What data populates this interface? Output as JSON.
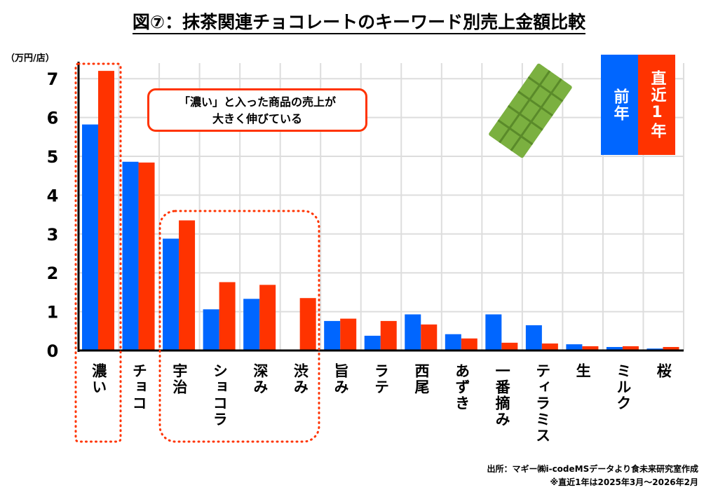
{
  "chart_data": {
    "type": "bar",
    "title": "図⑦：抹茶関連チョコレートのキーワード別売上金額比較",
    "ylabel": "（万円/店）",
    "ylim": [
      0,
      7
    ],
    "yticks": [
      "0",
      "1",
      "2",
      "3",
      "4",
      "5",
      "6",
      "7"
    ],
    "grid": true,
    "legend_position": "top-right",
    "categories": [
      "濃い",
      "チョコ",
      "宇治",
      "ショコラ",
      "深み",
      "渋み",
      "旨み",
      "ラテ",
      "西尾",
      "あずき",
      "一番摘み",
      "ティラミス",
      "生",
      "ミルク",
      "桜"
    ],
    "series": [
      {
        "name": "前年",
        "color": "#0066ff",
        "values": [
          5.82,
          4.86,
          2.88,
          1.06,
          1.33,
          0,
          0.76,
          0.38,
          0.93,
          0.42,
          0.93,
          0.65,
          0.16,
          0.09,
          0.05
        ]
      },
      {
        "name": "直近1年",
        "color": "#ff3300",
        "values": [
          7.2,
          4.84,
          3.35,
          1.76,
          1.69,
          1.35,
          0.82,
          0.76,
          0.67,
          0.31,
          0.2,
          0.18,
          0.11,
          0.11,
          0.09
        ]
      }
    ],
    "annotation": "「濃い」と入った商品の売上が\n大きく伸びている"
  },
  "callout": {
    "line1": "「濃い」と入った商品の売上が",
    "line2": "大きく伸びている"
  },
  "source": {
    "line1": "出所：マギー㈱i-codeMSデータより食未来研究室作成",
    "line2": "※直近1年は2025年3月～2026年2月"
  }
}
